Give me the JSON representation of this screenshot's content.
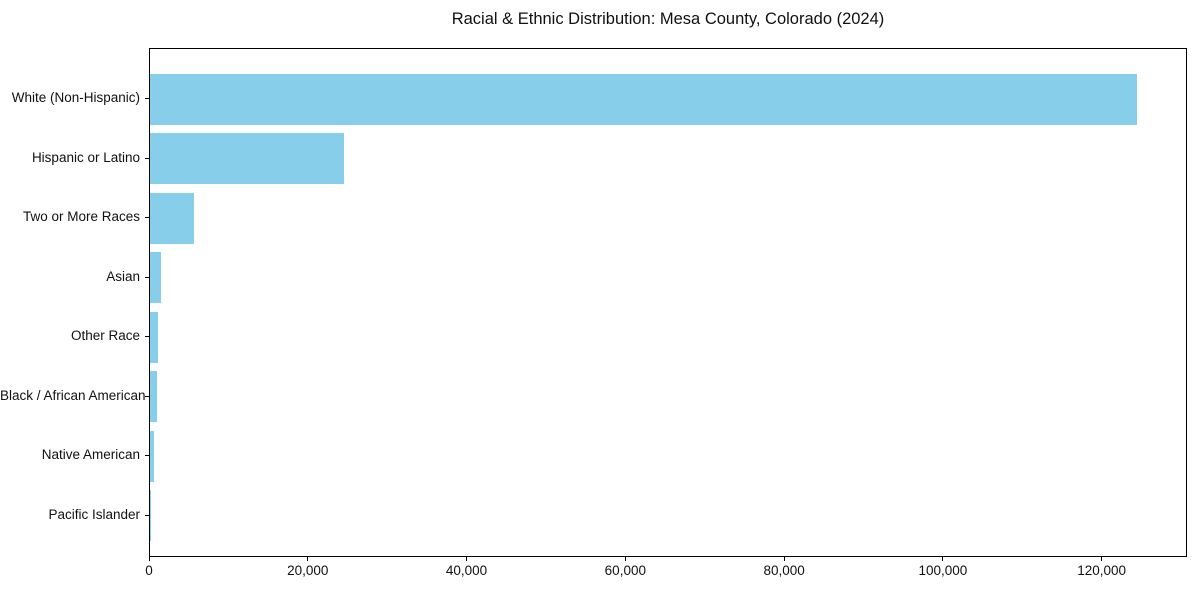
{
  "chart_data": {
    "type": "bar",
    "orientation": "horizontal",
    "title": "Racial & Ethnic Distribution: Mesa County, Colorado (2024)",
    "categories": [
      "White (Non-Hispanic)",
      "Hispanic or Latino",
      "Two or More Races",
      "Asian",
      "Other Race",
      "Black / African American",
      "Native American",
      "Pacific Islander"
    ],
    "values": [
      124300,
      24400,
      5600,
      1400,
      1050,
      900,
      550,
      100
    ],
    "xlabel": "",
    "ylabel": "",
    "xlim": [
      0,
      130750
    ],
    "xticks": [
      0,
      20000,
      40000,
      60000,
      80000,
      100000,
      120000
    ],
    "xtick_labels": [
      "0",
      "20,000",
      "40,000",
      "60,000",
      "80,000",
      "100,000",
      "120,000"
    ],
    "bar_color": "#87CEEB",
    "spine_color": "#000000",
    "background_color": "#ffffff",
    "grid": false,
    "legend": null
  }
}
